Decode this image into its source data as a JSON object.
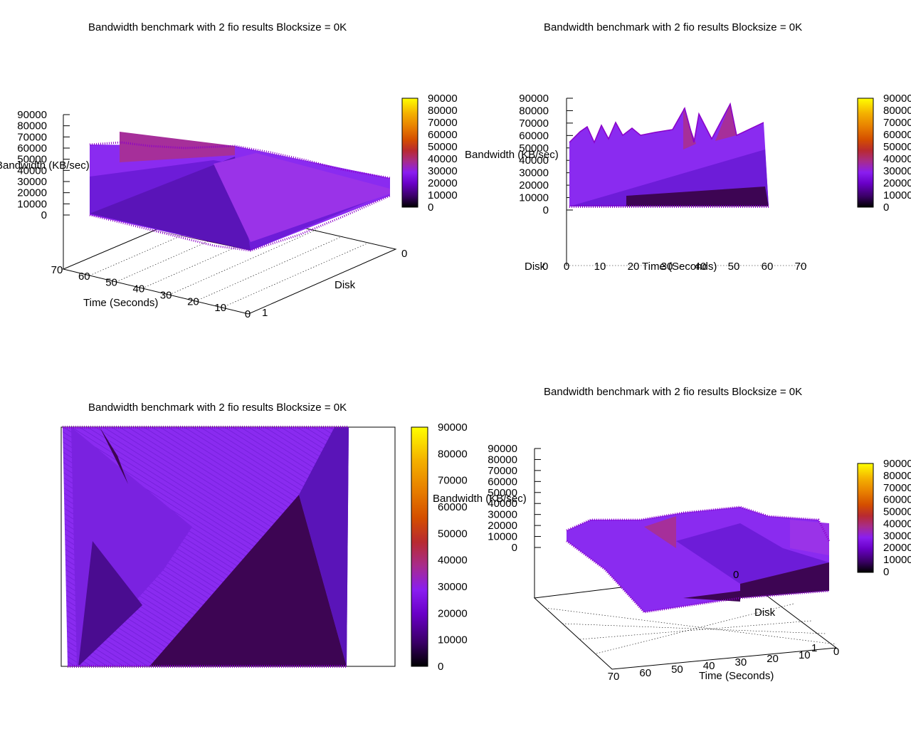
{
  "palette": {
    "colormap": [
      "#000000",
      "#3a0066",
      "#6a00c8",
      "#8a1ef0",
      "#9a22cc",
      "#a82c8c",
      "#b82a30",
      "#d44e00",
      "#e88000",
      "#f4b000",
      "#ffff00"
    ],
    "surface_low": "#3d0553",
    "surface_mid": "#6d1cd8",
    "surface_main": "#8a2bf0",
    "surface_high": "#a62f9a",
    "surface_peak": "#b8333a",
    "marker": "#8a00c8"
  },
  "chart_data": [
    {
      "id": "top-left",
      "type": "surface3d",
      "view": "perspective",
      "title": "Bandwidth benchmark with 2 fio results  Blocksize = 0K",
      "xlabel": "Time (Seconds)",
      "ylabel": "Disk",
      "zlabel": "Bandwidth (KB/sec)",
      "xticks": [
        "70",
        "60",
        "50",
        "40",
        "30",
        "20",
        "10",
        "0"
      ],
      "yticks": [
        "0",
        "1"
      ],
      "zticks": [
        "90000",
        "80000",
        "70000",
        "60000",
        "50000",
        "40000",
        "30000",
        "20000",
        "10000",
        "0"
      ],
      "colorbar_ticks": [
        "90000",
        "80000",
        "70000",
        "60000",
        "50000",
        "40000",
        "30000",
        "20000",
        "10000",
        "0"
      ],
      "xlim": [
        0,
        70
      ],
      "ylim": [
        0,
        1
      ],
      "zlim": [
        0,
        90000
      ]
    },
    {
      "id": "top-right",
      "type": "surface3d",
      "view": "front (time axis)",
      "title": "Bandwidth benchmark with 2 fio results  Blocksize = 0K",
      "xlabel": "Time (Seconds)",
      "ylabel": "Disk",
      "zlabel": "Bandwidth (KB/sec)",
      "xticks": [
        "0",
        "10",
        "20",
        "30",
        "40",
        "50",
        "60",
        "70"
      ],
      "yticks": [
        "0"
      ],
      "zticks": [
        "90000",
        "80000",
        "70000",
        "60000",
        "50000",
        "40000",
        "30000",
        "20000",
        "10000",
        "0"
      ],
      "colorbar_ticks": [
        "90000",
        "80000",
        "70000",
        "60000",
        "50000",
        "40000",
        "30000",
        "20000",
        "10000",
        "0"
      ],
      "xlim": [
        0,
        70
      ],
      "zlim": [
        0,
        90000
      ]
    },
    {
      "id": "bottom-left",
      "type": "heatmap",
      "view": "top-down map",
      "title": "Bandwidth benchmark with 2 fio results  Blocksize = 0K",
      "colorbar_ticks": [
        "90000",
        "80000",
        "70000",
        "60000",
        "50000",
        "40000",
        "30000",
        "20000",
        "10000",
        "0"
      ],
      "zlim": [
        0,
        90000
      ]
    },
    {
      "id": "bottom-right",
      "type": "surface3d",
      "view": "perspective (rotated)",
      "title": "Bandwidth benchmark with 2 fio results  Blocksize = 0K",
      "xlabel": "Time (Seconds)",
      "ylabel": "Disk",
      "zlabel": "Bandwidth (KB/sec)",
      "xticks": [
        "70",
        "60",
        "50",
        "40",
        "30",
        "20",
        "10",
        "0"
      ],
      "yticks": [
        "0",
        "1"
      ],
      "zticks": [
        "90000",
        "80000",
        "70000",
        "60000",
        "50000",
        "40000",
        "30000",
        "20000",
        "10000",
        "0"
      ],
      "colorbar_ticks": [
        "90000",
        "80000",
        "70000",
        "60000",
        "50000",
        "40000",
        "30000",
        "20000",
        "10000",
        "0"
      ],
      "xlim": [
        0,
        70
      ],
      "ylim": [
        0,
        1
      ],
      "zlim": [
        0,
        90000
      ]
    }
  ]
}
